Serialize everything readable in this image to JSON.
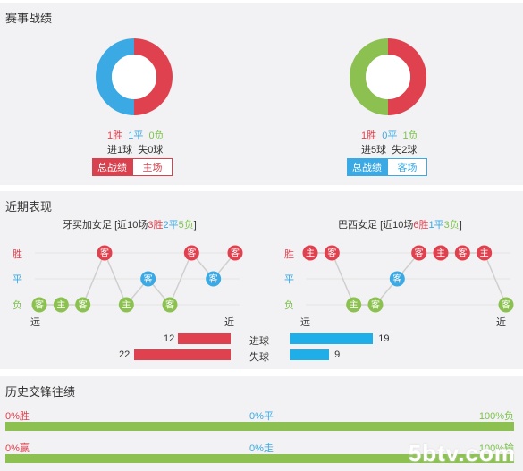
{
  "sections": {
    "record_title": "赛事战绩",
    "recent_title": "近期表现",
    "h2h_title": "历史交锋往绩"
  },
  "left_team": {
    "summary": {
      "win": "1胜",
      "draw": "1平",
      "loss": "0负",
      "goals_for": "进1球",
      "goals_against": "失0球"
    },
    "tabs": {
      "overall": "总战绩",
      "home": "主场"
    },
    "recent": {
      "name": "牙买加女足",
      "prefix": "[近10场",
      "w": "3胜",
      "d": "2平",
      "l": "5负",
      "suffix": "]",
      "far": "远",
      "near": "近"
    },
    "goals_scored": "12",
    "goals_conceded": "22"
  },
  "right_team": {
    "summary": {
      "win": "1胜",
      "draw": "0平",
      "loss": "1负",
      "goals_for": "进5球",
      "goals_against": "失2球"
    },
    "tabs": {
      "overall": "总战绩",
      "away": "客场"
    },
    "recent": {
      "name": "巴西女足",
      "prefix": "[近10场",
      "w": "6胜",
      "d": "1平",
      "l": "3负",
      "suffix": "]",
      "far": "远",
      "near": "近"
    },
    "goals_scored": "19",
    "goals_conceded": "9"
  },
  "labels": {
    "win": "胜",
    "draw": "平",
    "loss": "负",
    "goals_scored": "进球",
    "goals_conceded": "失球"
  },
  "h2h": {
    "row1": {
      "left": "0%胜",
      "mid": "0%平",
      "right": "100%负"
    },
    "row2": {
      "left": "0%赢",
      "mid": "0%走",
      "right": "100%输"
    }
  },
  "watermark": "5btv.com",
  "colors": {
    "win": "#e0414e",
    "draw": "#3aa9e4",
    "loss": "#8cc152",
    "tab_left": "#d9414e",
    "tab_right": "#3aa9e4"
  },
  "chart_data": [
    {
      "type": "pie",
      "name": "left-record",
      "labels": [
        "胜",
        "平",
        "负"
      ],
      "values": [
        1,
        1,
        0
      ]
    },
    {
      "type": "pie",
      "name": "right-record",
      "labels": [
        "胜",
        "平",
        "负"
      ],
      "values": [
        1,
        0,
        1
      ]
    },
    {
      "type": "line",
      "name": "left-recent-form",
      "x": [
        1,
        2,
        3,
        4,
        5,
        6,
        7,
        8,
        9,
        10
      ],
      "results": [
        "L",
        "L",
        "L",
        "W",
        "L",
        "D",
        "L",
        "W",
        "D",
        "W"
      ],
      "venues": [
        "客",
        "主",
        "客",
        "客",
        "主",
        "客",
        "客",
        "客",
        "客",
        "客"
      ]
    },
    {
      "type": "line",
      "name": "right-recent-form",
      "x": [
        1,
        2,
        3,
        4,
        5,
        6,
        7,
        8,
        9,
        10
      ],
      "results": [
        "W",
        "W",
        "L",
        "L",
        "D",
        "W",
        "W",
        "W",
        "W",
        "L"
      ],
      "venues": [
        "主",
        "客",
        "主",
        "客",
        "客",
        "客",
        "主",
        "客",
        "主",
        "客"
      ]
    },
    {
      "type": "bar",
      "name": "goals",
      "categories": [
        "进球",
        "失球"
      ],
      "series": [
        {
          "name": "牙买加女足",
          "values": [
            12,
            22
          ]
        },
        {
          "name": "巴西女足",
          "values": [
            19,
            9
          ]
        }
      ]
    }
  ]
}
